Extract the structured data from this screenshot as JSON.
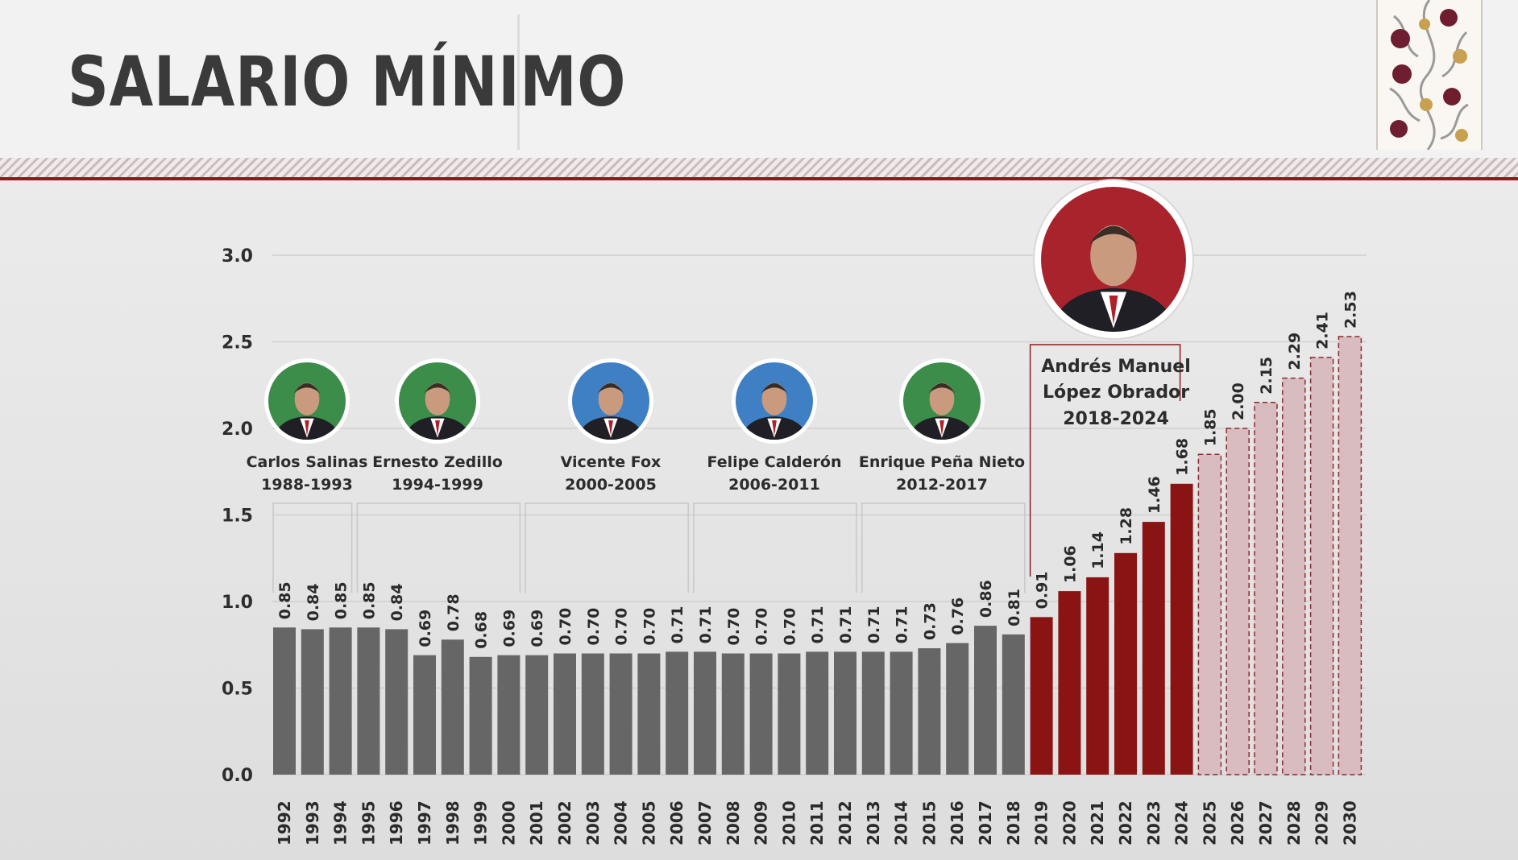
{
  "title": "SALARIO MÍNIMO",
  "colors": {
    "historic": "#666666",
    "amlo": "#8a1414",
    "projected_fill": "#d8bcc0",
    "projected_stroke": "#8c2a30",
    "accent": "#8c1c1c"
  },
  "presidents": [
    {
      "name": "Carlos Salinas",
      "years": "1988-1993",
      "photo_bg": "#3c8c4a",
      "icon": "portrait-icon"
    },
    {
      "name": "Ernesto Zedillo",
      "years": "1994-1999",
      "photo_bg": "#3c8c4a",
      "icon": "portrait-icon"
    },
    {
      "name": "Vicente Fox",
      "years": "2000-2005",
      "photo_bg": "#3f7fc4",
      "icon": "portrait-icon"
    },
    {
      "name": "Felipe Calderón",
      "years": "2006-2011",
      "photo_bg": "#3f7fc4",
      "icon": "portrait-icon"
    },
    {
      "name": "Enrique Peña Nieto",
      "years": "2012-2017",
      "photo_bg": "#3c8c4a",
      "icon": "portrait-icon"
    },
    {
      "name_lines": [
        "Andrés Manuel",
        "López Obrador"
      ],
      "years": "2018-2024",
      "photo_bg": "#a8232c",
      "icon": "portrait-icon"
    }
  ],
  "chart_data": {
    "type": "bar",
    "title": "SALARIO MÍNIMO",
    "xlabel": "",
    "ylabel": "",
    "ylim": [
      0,
      3.0
    ],
    "yticks": [
      "0.0",
      "0.5",
      "1.0",
      "1.5",
      "2.0",
      "2.5",
      "3.0"
    ],
    "grid": true,
    "legend": "none",
    "categories": [
      "1992",
      "1993",
      "1994",
      "1995",
      "1996",
      "1997",
      "1998",
      "1999",
      "2000",
      "2001",
      "2002",
      "2003",
      "2004",
      "2005",
      "2006",
      "2007",
      "2008",
      "2009",
      "2010",
      "2011",
      "2012",
      "2013",
      "2014",
      "2015",
      "2016",
      "2017",
      "2018",
      "2019",
      "2020",
      "2021",
      "2022",
      "2023",
      "2024",
      "2025",
      "2026",
      "2027",
      "2028",
      "2029",
      "2030"
    ],
    "labels": [
      "0.85",
      "0.84",
      "0.85",
      "0.85",
      "0.84",
      "0.69",
      "0.78",
      "0.68",
      "0.69",
      "0.69",
      "0.70",
      "0.70",
      "0.70",
      "0.70",
      "0.71",
      "0.71",
      "0.70",
      "0.70",
      "0.70",
      "0.71",
      "0.71",
      "0.71",
      "0.71",
      "0.73",
      "0.76",
      "0.86",
      "0.81",
      "0.91",
      "1.06",
      "1.14",
      "1.28",
      "1.46",
      "1.68",
      "1.85",
      "2.00",
      "2.15",
      "2.29",
      "2.41",
      "2.53"
    ],
    "values": [
      0.85,
      0.84,
      0.85,
      0.85,
      0.84,
      0.69,
      0.78,
      0.68,
      0.69,
      0.69,
      0.7,
      0.7,
      0.7,
      0.7,
      0.71,
      0.71,
      0.7,
      0.7,
      0.7,
      0.71,
      0.71,
      0.71,
      0.71,
      0.73,
      0.76,
      0.86,
      0.81,
      0.91,
      1.06,
      1.14,
      1.28,
      1.46,
      1.68,
      1.85,
      2.0,
      2.15,
      2.29,
      2.41,
      2.53
    ],
    "groups": [
      "historic",
      "historic",
      "historic",
      "historic",
      "historic",
      "historic",
      "historic",
      "historic",
      "historic",
      "historic",
      "historic",
      "historic",
      "historic",
      "historic",
      "historic",
      "historic",
      "historic",
      "historic",
      "historic",
      "historic",
      "historic",
      "historic",
      "historic",
      "historic",
      "historic",
      "historic",
      "historic",
      "amlo",
      "amlo",
      "amlo",
      "amlo",
      "amlo",
      "amlo",
      "projected",
      "projected",
      "projected",
      "projected",
      "projected",
      "projected"
    ]
  }
}
